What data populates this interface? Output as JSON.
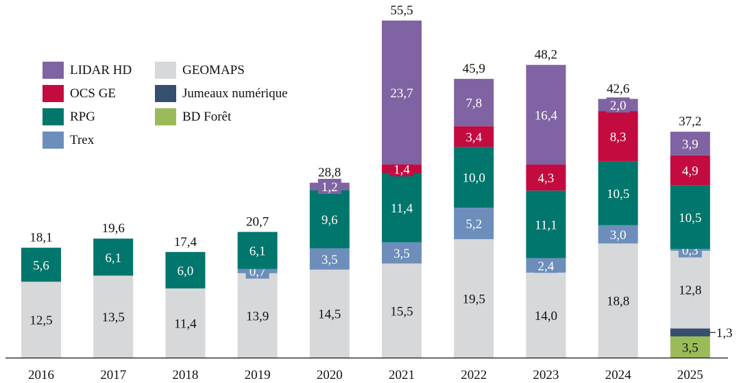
{
  "chart_data": {
    "type": "bar",
    "stacked": true,
    "title": "",
    "xlabel": "",
    "ylabel": "",
    "ylim": [
      0,
      55.5
    ],
    "grid": false,
    "legend_position": "top-left",
    "categories": [
      "2016",
      "2017",
      "2018",
      "2019",
      "2020",
      "2021",
      "2022",
      "2023",
      "2024",
      "2025"
    ],
    "totals": [
      "18,1",
      "19,6",
      "17,4",
      "20,7",
      "28,8",
      "55,5",
      "45,9",
      "48,2",
      "42,6",
      "37,2"
    ],
    "series": [
      {
        "name": "BD Forêt",
        "color": "#9bbb59",
        "label_color": "#111111",
        "values": [
          0,
          0,
          0,
          0,
          0,
          0,
          0,
          0,
          0,
          3.5
        ],
        "labels": [
          "",
          "",
          "",
          "",
          "",
          "",
          "",
          "",
          "",
          "3,5"
        ]
      },
      {
        "name": "Jumeaux numérique",
        "color": "#374f6e",
        "label_color": "#111111",
        "values": [
          0,
          0,
          0,
          0,
          0,
          0,
          0,
          0,
          0,
          1.3
        ],
        "labels": [
          "",
          "",
          "",
          "",
          "",
          "",
          "",
          "",
          "",
          "1,3"
        ]
      },
      {
        "name": "GEOMAPS",
        "color": "#d7d8da",
        "label_color": "#111111",
        "values": [
          12.5,
          13.5,
          11.4,
          13.9,
          14.5,
          15.5,
          19.5,
          14.0,
          18.8,
          12.8
        ],
        "labels": [
          "12,5",
          "13,5",
          "11,4",
          "13,9",
          "14,5",
          "15,5",
          "19,5",
          "14,0",
          "18,8",
          "12,8"
        ]
      },
      {
        "name": "Trex",
        "color": "#6d8ebb",
        "label_color": "#ffffff",
        "values": [
          0,
          0,
          0,
          0.7,
          3.5,
          3.5,
          5.2,
          2.4,
          3.0,
          0.3
        ],
        "labels": [
          "",
          "",
          "",
          "0,7",
          "3,5",
          "3,5",
          "5,2",
          "2,4",
          "3,0",
          "0,3"
        ]
      },
      {
        "name": "RPG",
        "color": "#00766c",
        "label_color": "#ffffff",
        "values": [
          5.6,
          6.1,
          6.0,
          6.1,
          9.6,
          11.4,
          10.0,
          11.1,
          10.5,
          10.5
        ],
        "labels": [
          "5,6",
          "6,1",
          "6,0",
          "6,1",
          "9,6",
          "11,4",
          "10,0",
          "11,1",
          "10,5",
          "10,5"
        ]
      },
      {
        "name": "OCS GE",
        "color": "#c30b3f",
        "label_color": "#ffffff",
        "values": [
          0,
          0,
          0,
          0,
          0,
          1.4,
          3.4,
          4.3,
          8.3,
          4.9
        ],
        "labels": [
          "",
          "",
          "",
          "",
          "",
          "1,4",
          "3,4",
          "4,3",
          "8,3",
          "4,9"
        ]
      },
      {
        "name": "LIDAR HD",
        "color": "#8063a2",
        "label_color": "#ffffff",
        "values": [
          0,
          0,
          0,
          0,
          1.2,
          23.7,
          7.8,
          16.4,
          2.0,
          3.9
        ],
        "labels": [
          "",
          "",
          "",
          "",
          "1,2",
          "23,7",
          "7,8",
          "16,4",
          "2,0",
          "3,9"
        ]
      }
    ],
    "legend": [
      {
        "name": "LIDAR HD",
        "color": "#8063a2"
      },
      {
        "name": "OCS GE",
        "color": "#c30b3f"
      },
      {
        "name": "RPG",
        "color": "#00766c"
      },
      {
        "name": "Trex",
        "color": "#6d8ebb"
      },
      {
        "name": "GEOMAPS",
        "color": "#d7d8da"
      },
      {
        "name": "Jumeaux numérique",
        "color": "#374f6e"
      },
      {
        "name": "BD Forêt",
        "color": "#9bbb59"
      }
    ]
  }
}
